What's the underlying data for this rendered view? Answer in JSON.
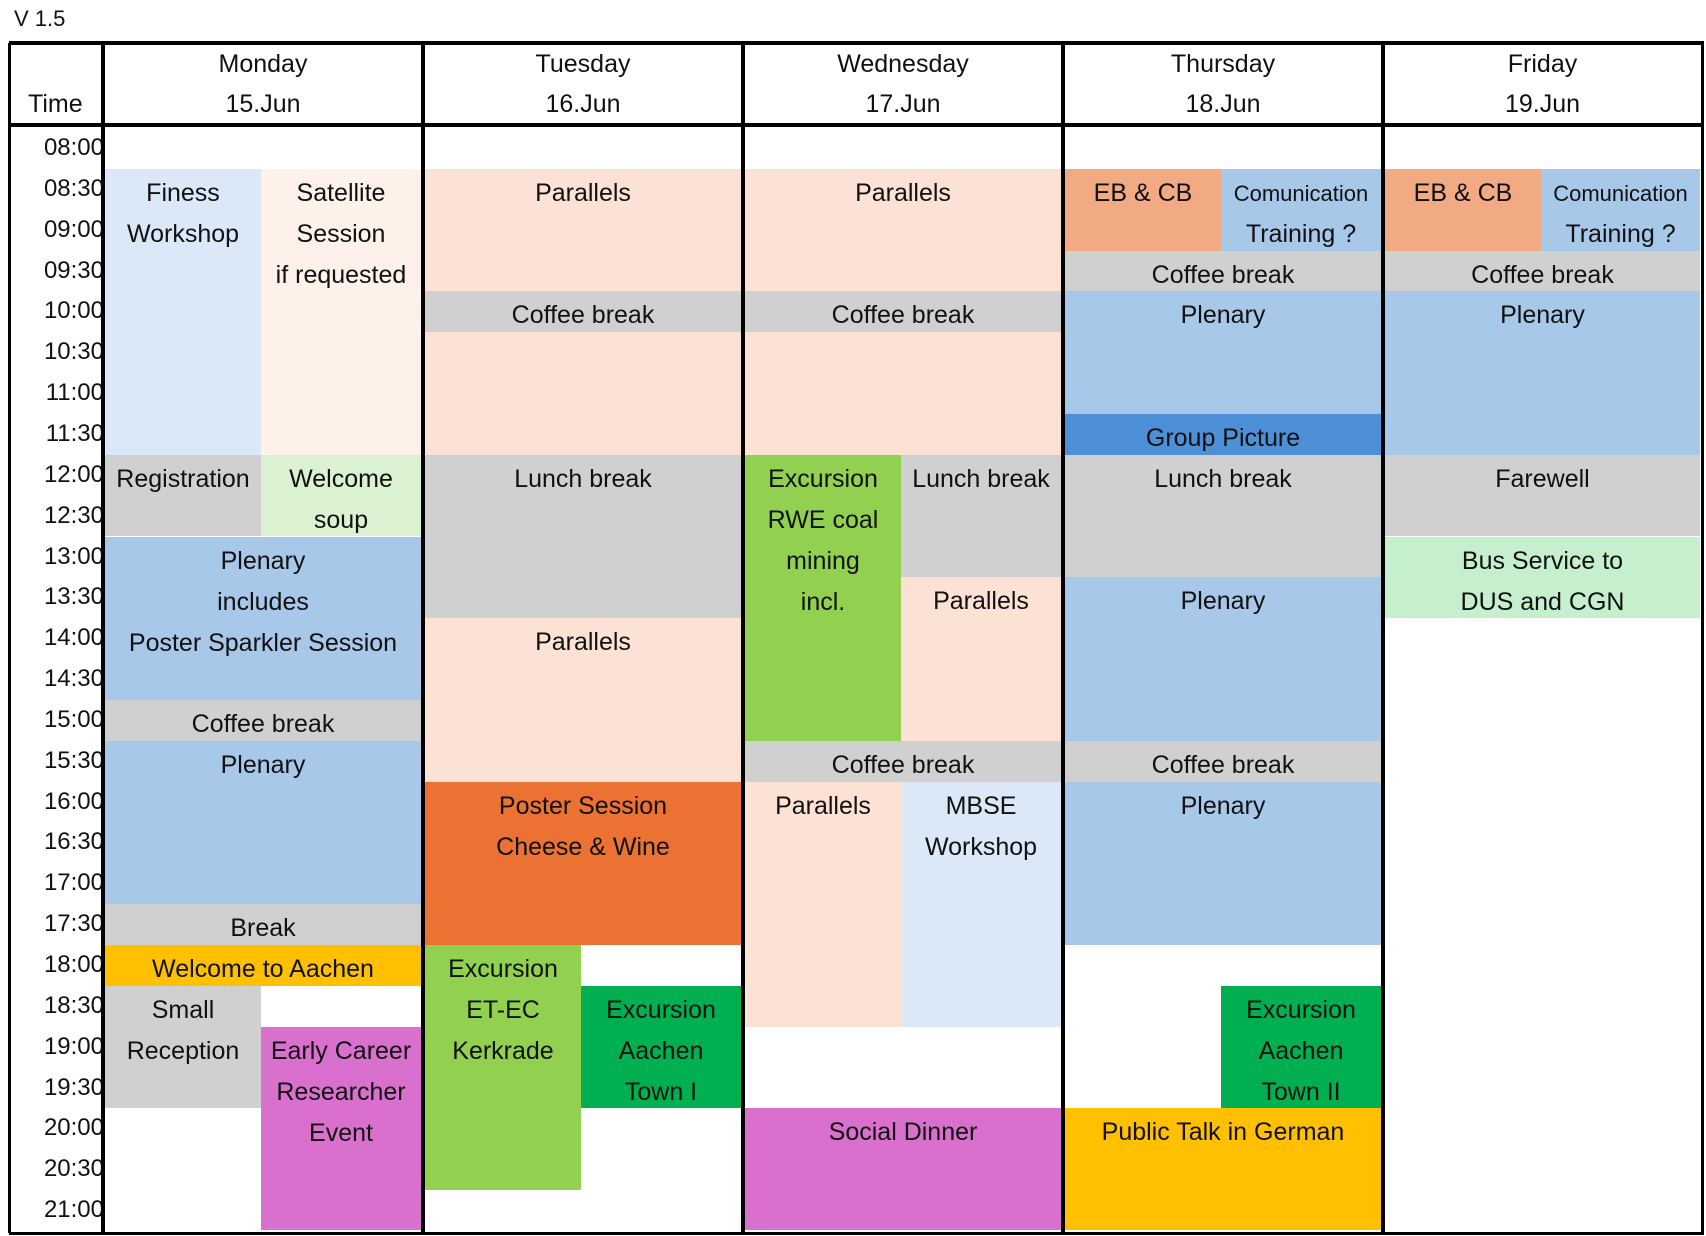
{
  "version": "V 1.5",
  "time_header": "Time",
  "days": [
    {
      "name": "Monday",
      "date": "15.Jun"
    },
    {
      "name": "Tuesday",
      "date": "16.Jun"
    },
    {
      "name": "Wednesday",
      "date": "17.Jun"
    },
    {
      "name": "Thursday",
      "date": "18.Jun"
    },
    {
      "name": "Friday",
      "date": "19.Jun"
    }
  ],
  "times": [
    "08:00",
    "08:30",
    "09:00",
    "09:30",
    "10:00",
    "10:30",
    "11:00",
    "11:30",
    "12:00",
    "12:30",
    "13:00",
    "13:30",
    "14:00",
    "14:30",
    "15:00",
    "15:30",
    "16:00",
    "16:30",
    "17:00",
    "17:30",
    "18:00",
    "18:30",
    "19:00",
    "19:30",
    "20:00",
    "20:30",
    "21:00"
  ],
  "colors": {
    "light_blue": "#dae8f7",
    "peach": "#fbe2d5",
    "light_peach": "#fdf1ea",
    "gray": "#d0d0d0",
    "light_green": "#dbf2d2",
    "blue": "#a8c8ea",
    "dark_blue": "#4d90d8",
    "salmon": "#f2aa84",
    "orange": "#eb7232",
    "yellow": "#ffc000",
    "lime": "#92d050",
    "green": "#00b050",
    "magenta": "#da70cd",
    "mint": "#c6efce"
  },
  "events": [
    {
      "day": 0,
      "sub": "left",
      "start": "08:30",
      "end": "12:00",
      "color": "light_blue",
      "lines": [
        "Finess",
        "Workshop"
      ]
    },
    {
      "day": 0,
      "sub": "right",
      "start": "08:30",
      "end": "12:00",
      "color": "light_peach",
      "lines": [
        "Satellite",
        "Session",
        "if requested"
      ]
    },
    {
      "day": 0,
      "sub": "left",
      "start": "12:00",
      "end": "13:00",
      "color": "gray",
      "lines": [
        "Registration"
      ]
    },
    {
      "day": 0,
      "sub": "right",
      "start": "12:00",
      "end": "13:00",
      "color": "light_green",
      "lines": [
        "Welcome",
        "soup"
      ]
    },
    {
      "day": 0,
      "sub": "full",
      "start": "13:00",
      "end": "15:00",
      "color": "blue",
      "lines": [
        "Plenary",
        "includes",
        "Poster Sparkler Session"
      ]
    },
    {
      "day": 0,
      "sub": "full",
      "start": "15:00",
      "end": "15:30",
      "color": "gray",
      "lines": [
        "Coffee break"
      ]
    },
    {
      "day": 0,
      "sub": "full",
      "start": "15:30",
      "end": "17:30",
      "color": "blue",
      "lines": [
        "Plenary"
      ]
    },
    {
      "day": 0,
      "sub": "full",
      "start": "17:30",
      "end": "18:00",
      "color": "gray",
      "lines": [
        "Break"
      ]
    },
    {
      "day": 0,
      "sub": "full",
      "start": "18:00",
      "end": "18:30",
      "color": "yellow",
      "lines": [
        "Welcome to Aachen"
      ]
    },
    {
      "day": 0,
      "sub": "left",
      "start": "18:30",
      "end": "20:00",
      "color": "gray",
      "lines": [
        "Small",
        "Reception"
      ]
    },
    {
      "day": 0,
      "sub": "right",
      "start": "19:00",
      "end": "21:30",
      "color": "magenta",
      "lines": [
        "Early Career",
        "Researcher",
        "Event"
      ]
    },
    {
      "day": 1,
      "sub": "full",
      "start": "08:30",
      "end": "10:00",
      "color": "peach",
      "lines": [
        "Parallels"
      ]
    },
    {
      "day": 1,
      "sub": "full",
      "start": "10:00",
      "end": "10:30",
      "color": "gray",
      "lines": [
        "Coffee break"
      ]
    },
    {
      "day": 1,
      "sub": "full",
      "start": "10:30",
      "end": "12:00",
      "color": "peach",
      "lines": []
    },
    {
      "day": 1,
      "sub": "full",
      "start": "12:00",
      "end": "14:00",
      "color": "gray",
      "lines": [
        "Lunch break"
      ]
    },
    {
      "day": 1,
      "sub": "full",
      "start": "14:00",
      "end": "16:00",
      "color": "peach",
      "lines": [
        "Parallels"
      ]
    },
    {
      "day": 1,
      "sub": "full",
      "start": "16:00",
      "end": "18:00",
      "color": "orange",
      "lines": [
        "Poster Session",
        "Cheese & Wine"
      ]
    },
    {
      "day": 1,
      "sub": "left",
      "start": "18:00",
      "end": "21:00",
      "color": "lime",
      "lines": [
        "Excursion",
        "ET-EC",
        "Kerkrade"
      ]
    },
    {
      "day": 1,
      "sub": "right",
      "start": "18:30",
      "end": "20:00",
      "color": "green",
      "lines": [
        "Excursion",
        "Aachen",
        "Town I"
      ]
    },
    {
      "day": 2,
      "sub": "full",
      "start": "08:30",
      "end": "10:00",
      "color": "peach",
      "lines": [
        "Parallels"
      ]
    },
    {
      "day": 2,
      "sub": "full",
      "start": "10:00",
      "end": "10:30",
      "color": "gray",
      "lines": [
        "Coffee break"
      ]
    },
    {
      "day": 2,
      "sub": "full",
      "start": "10:30",
      "end": "12:00",
      "color": "peach",
      "lines": []
    },
    {
      "day": 2,
      "sub": "left",
      "start": "12:00",
      "end": "15:30",
      "color": "lime",
      "lines": [
        "Excursion",
        "RWE coal",
        "mining",
        "incl."
      ]
    },
    {
      "day": 2,
      "sub": "right",
      "start": "12:00",
      "end": "13:30",
      "color": "gray",
      "lines": [
        "Lunch break"
      ]
    },
    {
      "day": 2,
      "sub": "right",
      "start": "13:30",
      "end": "15:30",
      "color": "peach",
      "lines": [
        "Parallels"
      ]
    },
    {
      "day": 2,
      "sub": "full",
      "start": "15:30",
      "end": "16:00",
      "color": "gray",
      "lines": [
        "Coffee break"
      ]
    },
    {
      "day": 2,
      "sub": "left",
      "start": "16:00",
      "end": "19:00",
      "color": "peach",
      "lines": [
        "Parallels"
      ]
    },
    {
      "day": 2,
      "sub": "right",
      "start": "16:00",
      "end": "19:00",
      "color": "light_blue",
      "lines": [
        "MBSE",
        "Workshop"
      ]
    },
    {
      "day": 2,
      "sub": "full",
      "start": "20:00",
      "end": "21:30",
      "color": "magenta",
      "lines": [
        "Social Dinner"
      ]
    },
    {
      "day": 3,
      "sub": "left",
      "start": "08:30",
      "end": "09:30",
      "color": "salmon",
      "lines": [
        "EB & CB"
      ]
    },
    {
      "day": 3,
      "sub": "right",
      "start": "08:30",
      "end": "09:30",
      "color": "blue",
      "lines": [
        "Comunication",
        "Training ?"
      ],
      "small_first": true
    },
    {
      "day": 3,
      "sub": "full",
      "start": "09:30",
      "end": "10:00",
      "color": "gray",
      "lines": [
        "Coffee break"
      ]
    },
    {
      "day": 3,
      "sub": "full",
      "start": "10:00",
      "end": "11:30",
      "color": "blue",
      "lines": [
        "Plenary"
      ]
    },
    {
      "day": 3,
      "sub": "full",
      "start": "11:30",
      "end": "12:00",
      "color": "dark_blue",
      "lines": [
        "Group Picture"
      ]
    },
    {
      "day": 3,
      "sub": "full",
      "start": "12:00",
      "end": "13:30",
      "color": "gray",
      "lines": [
        "Lunch break"
      ]
    },
    {
      "day": 3,
      "sub": "full",
      "start": "13:30",
      "end": "15:30",
      "color": "blue",
      "lines": [
        "Plenary"
      ]
    },
    {
      "day": 3,
      "sub": "full",
      "start": "15:30",
      "end": "16:00",
      "color": "gray",
      "lines": [
        "Coffee break"
      ]
    },
    {
      "day": 3,
      "sub": "full",
      "start": "16:00",
      "end": "18:00",
      "color": "blue",
      "lines": [
        "Plenary"
      ]
    },
    {
      "day": 3,
      "sub": "right",
      "start": "18:30",
      "end": "20:00",
      "color": "green",
      "lines": [
        "Excursion",
        "Aachen",
        "Town II"
      ]
    },
    {
      "day": 3,
      "sub": "full",
      "start": "20:00",
      "end": "21:30",
      "color": "yellow",
      "lines": [
        "Public Talk in German"
      ]
    },
    {
      "day": 4,
      "sub": "left",
      "start": "08:30",
      "end": "09:30",
      "color": "salmon",
      "lines": [
        "EB & CB"
      ]
    },
    {
      "day": 4,
      "sub": "right",
      "start": "08:30",
      "end": "09:30",
      "color": "blue",
      "lines": [
        "Comunication",
        "Training ?"
      ],
      "small_first": true
    },
    {
      "day": 4,
      "sub": "full",
      "start": "09:30",
      "end": "10:00",
      "color": "gray",
      "lines": [
        "Coffee break"
      ]
    },
    {
      "day": 4,
      "sub": "full",
      "start": "10:00",
      "end": "12:00",
      "color": "blue",
      "lines": [
        "Plenary"
      ]
    },
    {
      "day": 4,
      "sub": "full",
      "start": "12:00",
      "end": "13:00",
      "color": "gray",
      "lines": [
        "Farewell"
      ]
    },
    {
      "day": 4,
      "sub": "full",
      "start": "13:00",
      "end": "14:00",
      "color": "mint",
      "lines": [
        "Bus Service to",
        "DUS and CGN"
      ]
    }
  ]
}
